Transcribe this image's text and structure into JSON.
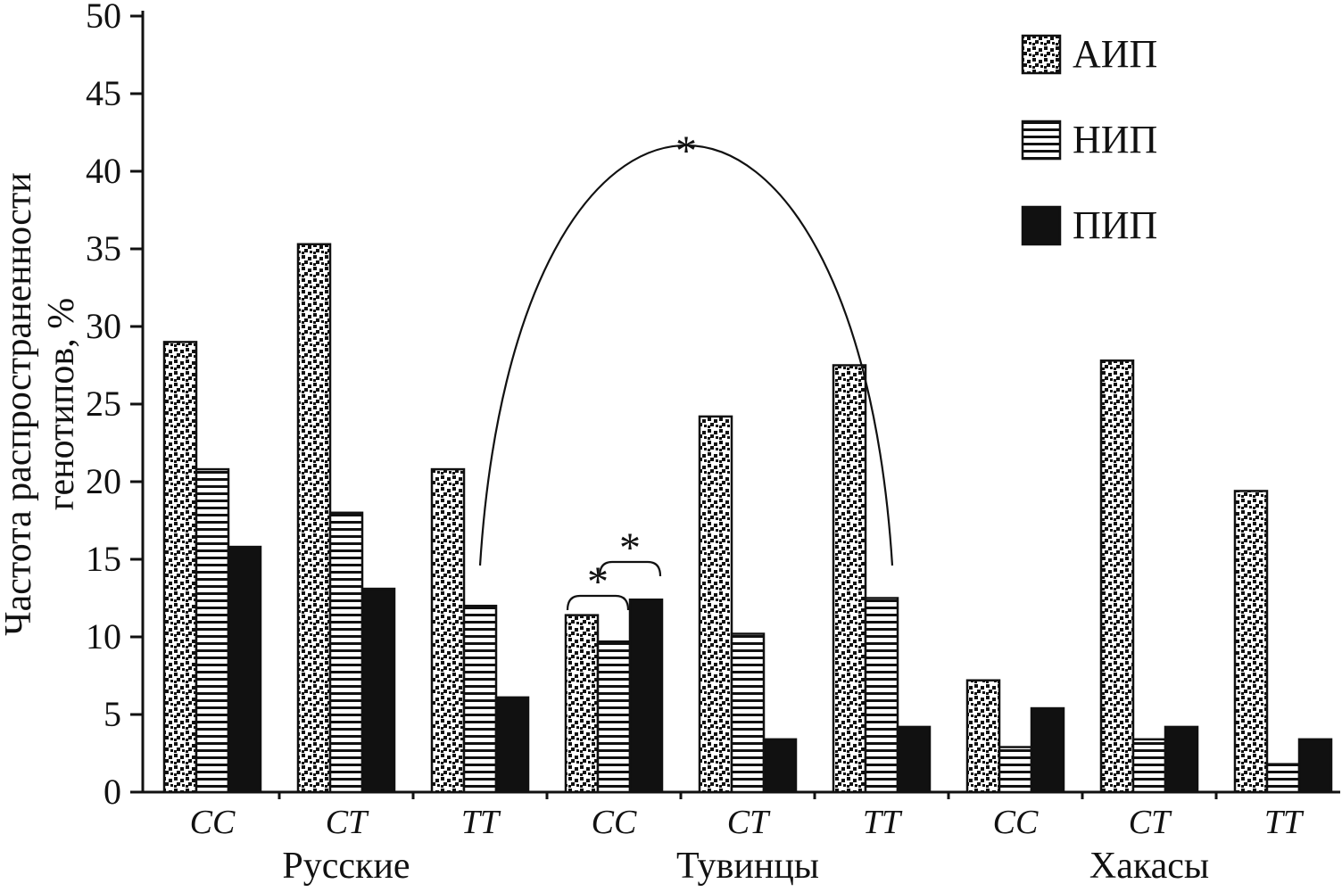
{
  "figure": {
    "background": "#ffffff",
    "ink": "#111111"
  },
  "chart_data": {
    "type": "bar",
    "title": "",
    "ylabel": [
      "Частота распространенности",
      "генотипов, %"
    ],
    "ylim": [
      0,
      50
    ],
    "yticks": [
      0,
      5,
      10,
      15,
      20,
      25,
      30,
      35,
      40,
      45,
      50
    ],
    "grid": false,
    "legend_position": "top-right",
    "categories": [
      "CC",
      "CT",
      "TT",
      "CC",
      "CT",
      "TT",
      "CC",
      "CT",
      "TT"
    ],
    "population_groups": [
      {
        "label": "Русские",
        "categories": [
          0,
          1,
          2
        ]
      },
      {
        "label": "Тувинцы",
        "categories": [
          3,
          4,
          5
        ]
      },
      {
        "label": "Хакасы",
        "categories": [
          6,
          7,
          8
        ]
      }
    ],
    "series": [
      {
        "name": "АИП",
        "pattern": "speckle",
        "values": [
          29.0,
          35.3,
          20.8,
          11.4,
          24.2,
          27.5,
          7.2,
          27.8,
          19.4
        ]
      },
      {
        "name": "НИП",
        "pattern": "hlines",
        "values": [
          20.8,
          18.0,
          12.0,
          9.7,
          10.2,
          12.5,
          2.9,
          3.4,
          1.8
        ]
      },
      {
        "name": "ПИП",
        "pattern": "solid",
        "values": [
          15.8,
          13.1,
          6.1,
          12.4,
          3.4,
          4.2,
          5.4,
          4.2,
          3.4
        ]
      }
    ],
    "significance": {
      "marker": "*",
      "arc": {
        "from_category": 2,
        "from_series": 1,
        "to_category": 5,
        "to_series": 1
      },
      "brackets": [
        {
          "category": 3,
          "between_series": [
            0,
            1
          ]
        },
        {
          "category": 3,
          "between_series": [
            1,
            2
          ]
        }
      ]
    }
  }
}
